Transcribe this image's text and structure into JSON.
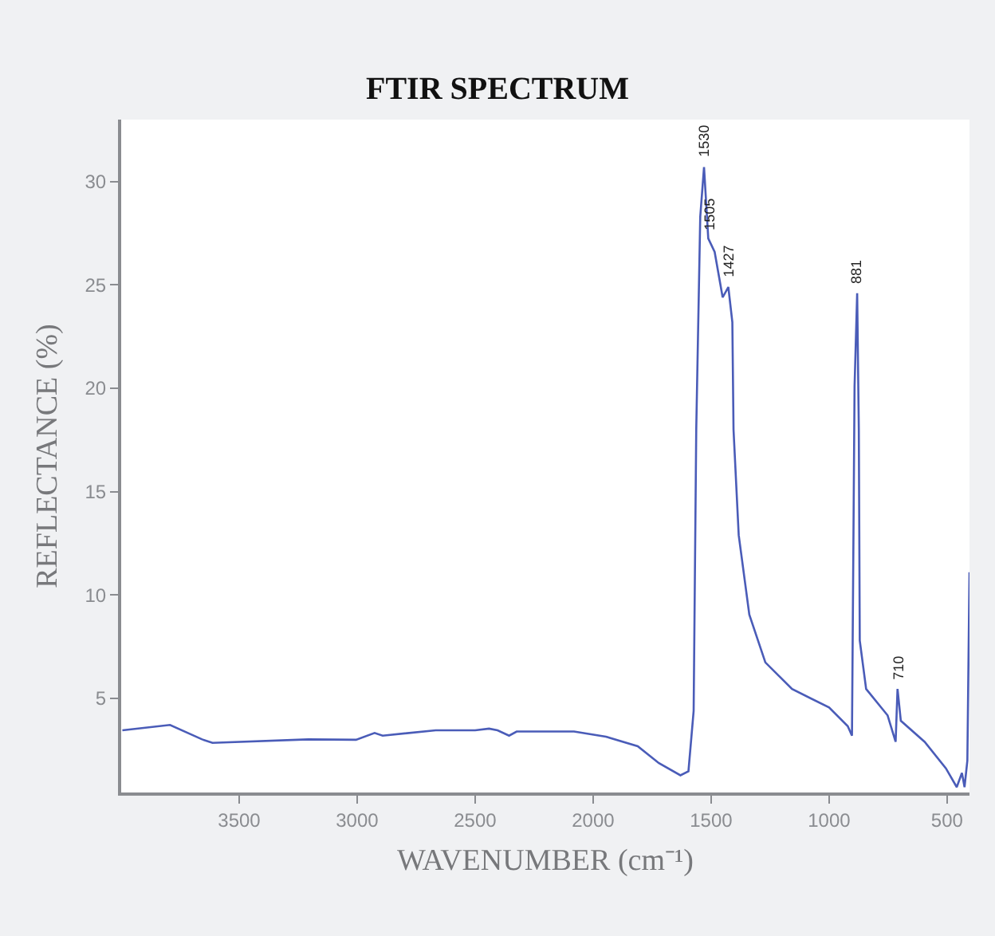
{
  "chart_data": {
    "type": "line",
    "title": "FTIR SPECTRUM",
    "xlabel": "WAVENUMBER (cm⁻¹)",
    "ylabel": "REFLECTANCE (%)",
    "xlim": [
      4000,
      405
    ],
    "xticks": [
      3500,
      3000,
      2500,
      2000,
      1500,
      1000,
      500
    ],
    "ylim": [
      0.45,
      33
    ],
    "yticks": [
      5,
      10,
      15,
      20,
      25,
      30
    ],
    "marker": "none",
    "line_style": "solid",
    "series": [
      {
        "color": "#4a5cb8",
        "x": [
          3995,
          3793,
          3657,
          3613,
          3207,
          3005,
          2926,
          2892,
          2667,
          2500,
          2441,
          2405,
          2356,
          2324,
          2081,
          1946,
          1811,
          1721,
          1630,
          1596,
          1574,
          1563,
          1546,
          1530,
          1512,
          1485,
          1451,
          1427,
          1410,
          1405,
          1383,
          1338,
          1270,
          1157,
          1000,
          921,
          903,
          892,
          881,
          874,
          870,
          843,
          752,
          718,
          710,
          696,
          595,
          505,
          459,
          437,
          426,
          414,
          405
        ],
        "values": [
          3.46,
          3.72,
          3.02,
          2.85,
          3.02,
          3.0,
          3.33,
          3.2,
          3.46,
          3.46,
          3.54,
          3.46,
          3.2,
          3.4,
          3.4,
          3.15,
          2.69,
          1.87,
          1.28,
          1.48,
          4.4,
          18.0,
          28.3,
          30.7,
          27.25,
          26.6,
          24.4,
          24.9,
          23.2,
          18.0,
          12.9,
          9.05,
          6.74,
          5.46,
          4.56,
          3.66,
          3.2,
          20.1,
          24.6,
          18.0,
          7.8,
          5.46,
          4.18,
          2.9,
          5.46,
          3.92,
          2.9,
          1.62,
          0.71,
          1.4,
          0.71,
          2.0,
          11.1
        ]
      }
    ],
    "annotations": [
      {
        "text": "1530",
        "x": 1530,
        "y": 30.7
      },
      {
        "text": "1505",
        "x": 1505,
        "y": 27.2
      },
      {
        "text": "1427",
        "x": 1427,
        "y": 24.9
      },
      {
        "text": "881",
        "x": 881,
        "y": 24.6
      },
      {
        "text": "710",
        "x": 710,
        "y": 5.46
      }
    ]
  }
}
